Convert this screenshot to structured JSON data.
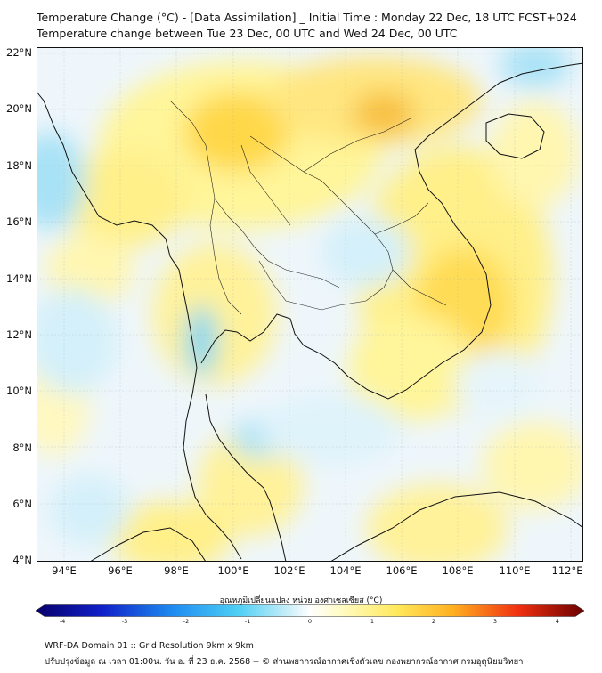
{
  "header": {
    "title_line1": "Temperature Change (°C) - [Data Assimilation] _ Initial Time : Monday 22 Dec, 18 UTC FCST+024",
    "title_line2": "Temperature change between Tue 23 Dec, 00 UTC and Wed 24 Dec, 00 UTC"
  },
  "map": {
    "lat_labels": [
      "22°N",
      "20°N",
      "18°N",
      "16°N",
      "14°N",
      "12°N",
      "10°N",
      "8°N",
      "6°N",
      "4°N"
    ],
    "lon_labels": [
      "94°E",
      "96°E",
      "98°E",
      "100°E",
      "102°E",
      "104°E",
      "106°E",
      "108°E",
      "110°E",
      "112°E"
    ],
    "colors": {
      "background": "#eef6fb",
      "warm_light": "#fff59a",
      "warm": "#ffe14a",
      "warm_strong": "#f7b733",
      "cool_light": "#bfeaf8",
      "cool": "#7fd6f2",
      "border": "#111111"
    }
  },
  "colorbar": {
    "label": "อุณหภูมิเปลี่ยนแปลง หน่วย องศาเซลเซียส (°C)",
    "ticks": [
      "-4",
      "-3",
      "-2",
      "-1",
      "0",
      "1",
      "2",
      "3",
      "4"
    ],
    "range": [
      -4,
      4
    ]
  },
  "footer": {
    "line1": "WRF-DA Domain 01 :: Grid Resolution 9km x 9km",
    "line2": "ปรับปรุงข้อมูล ณ เวลา 01:00น. วัน อ. ที่ 23 ธ.ค. 2568 -- © ส่วนพยากรณ์อากาศเชิงตัวเลข กองพยากรณ์อากาศ กรมอุตุนิยมวิทยา"
  }
}
